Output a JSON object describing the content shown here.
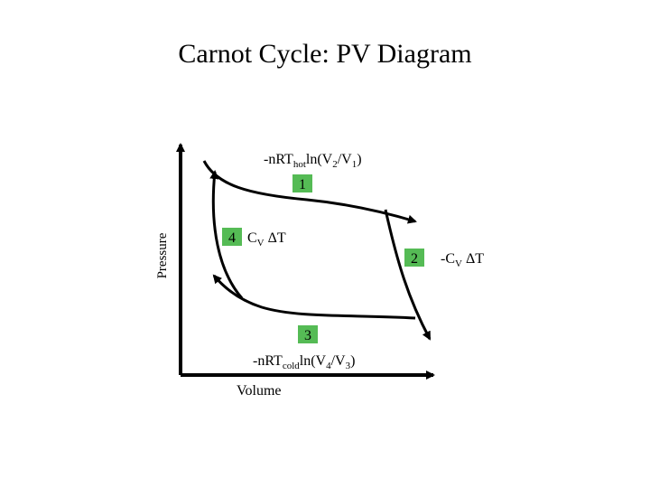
{
  "title": "Carnot Cycle: PV Diagram",
  "axes": {
    "x_label": "Volume",
    "y_label": "Pressure"
  },
  "states": {
    "s1": "1",
    "s2": "2",
    "s3": "3",
    "s4": "4"
  },
  "processes": {
    "hot": {
      "prefix": "-nRT",
      "sub": "hot",
      "expr_a": "ln(V",
      "sub_a": "2",
      "mid": "/V",
      "sub_b": "1",
      "close": ")"
    },
    "cold": {
      "prefix": "-nRT",
      "sub": "cold",
      "expr_a": "ln(V",
      "sub_a": "4",
      "mid": "/V",
      "sub_b": "3",
      "close": ")"
    },
    "right": {
      "prefix": "-C",
      "sub": "V",
      "rest": " ΔT"
    },
    "left": {
      "prefix": "C",
      "sub": "V",
      "rest": " ΔT"
    }
  },
  "colors": {
    "label_background": "#55bb55",
    "line": "#000000"
  }
}
